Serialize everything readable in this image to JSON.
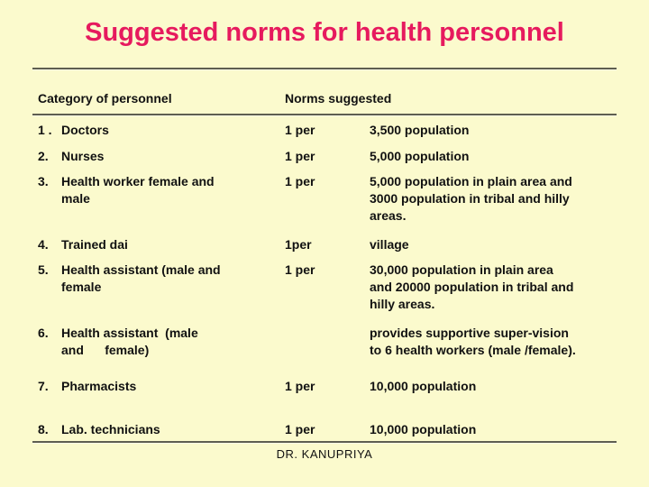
{
  "slide": {
    "title": "Suggested norms for health personnel",
    "footer": "DR. KANUPRIYA",
    "colors": {
      "background": "#fbfacd",
      "title": "#e61a5e",
      "text": "#111111",
      "rule": "#5e5e50"
    },
    "table": {
      "headers": {
        "category": "Category of personnel",
        "norms": "Norms suggested"
      },
      "rows": [
        {
          "number": "1 .",
          "category": "Doctors",
          "norm": "1 per",
          "value": "3,500 population"
        },
        {
          "number": "2.",
          "category": "Nurses",
          "norm": "1 per",
          "value": "5,000 population"
        },
        {
          "number": "3.",
          "category": "Health worker female and\nmale",
          "norm": "1 per",
          "value": "5,000 population in plain area and\n3000 population in tribal and hilly\nareas."
        },
        {
          "number": "4.",
          "category": "Trained dai",
          "norm": "1per",
          "value": "village"
        },
        {
          "number": "5.",
          "category": "Health assistant (male and\nfemale",
          "norm": "1 per",
          "value": "30,000 population in plain area\nand 20000 population in tribal and\nhilly areas."
        },
        {
          "number": "6.",
          "category": "Health assistant  (male\nand      female)",
          "norm": "",
          "value": "provides supportive super-vision\nto 6 health workers (male /female)."
        },
        {
          "number": "7.",
          "category": "Pharmacists",
          "norm": "1 per",
          "value": "10,000 population"
        },
        {
          "number": "8.",
          "category": "Lab. technicians",
          "norm": "1 per",
          "value": "10,000 population"
        }
      ]
    }
  }
}
